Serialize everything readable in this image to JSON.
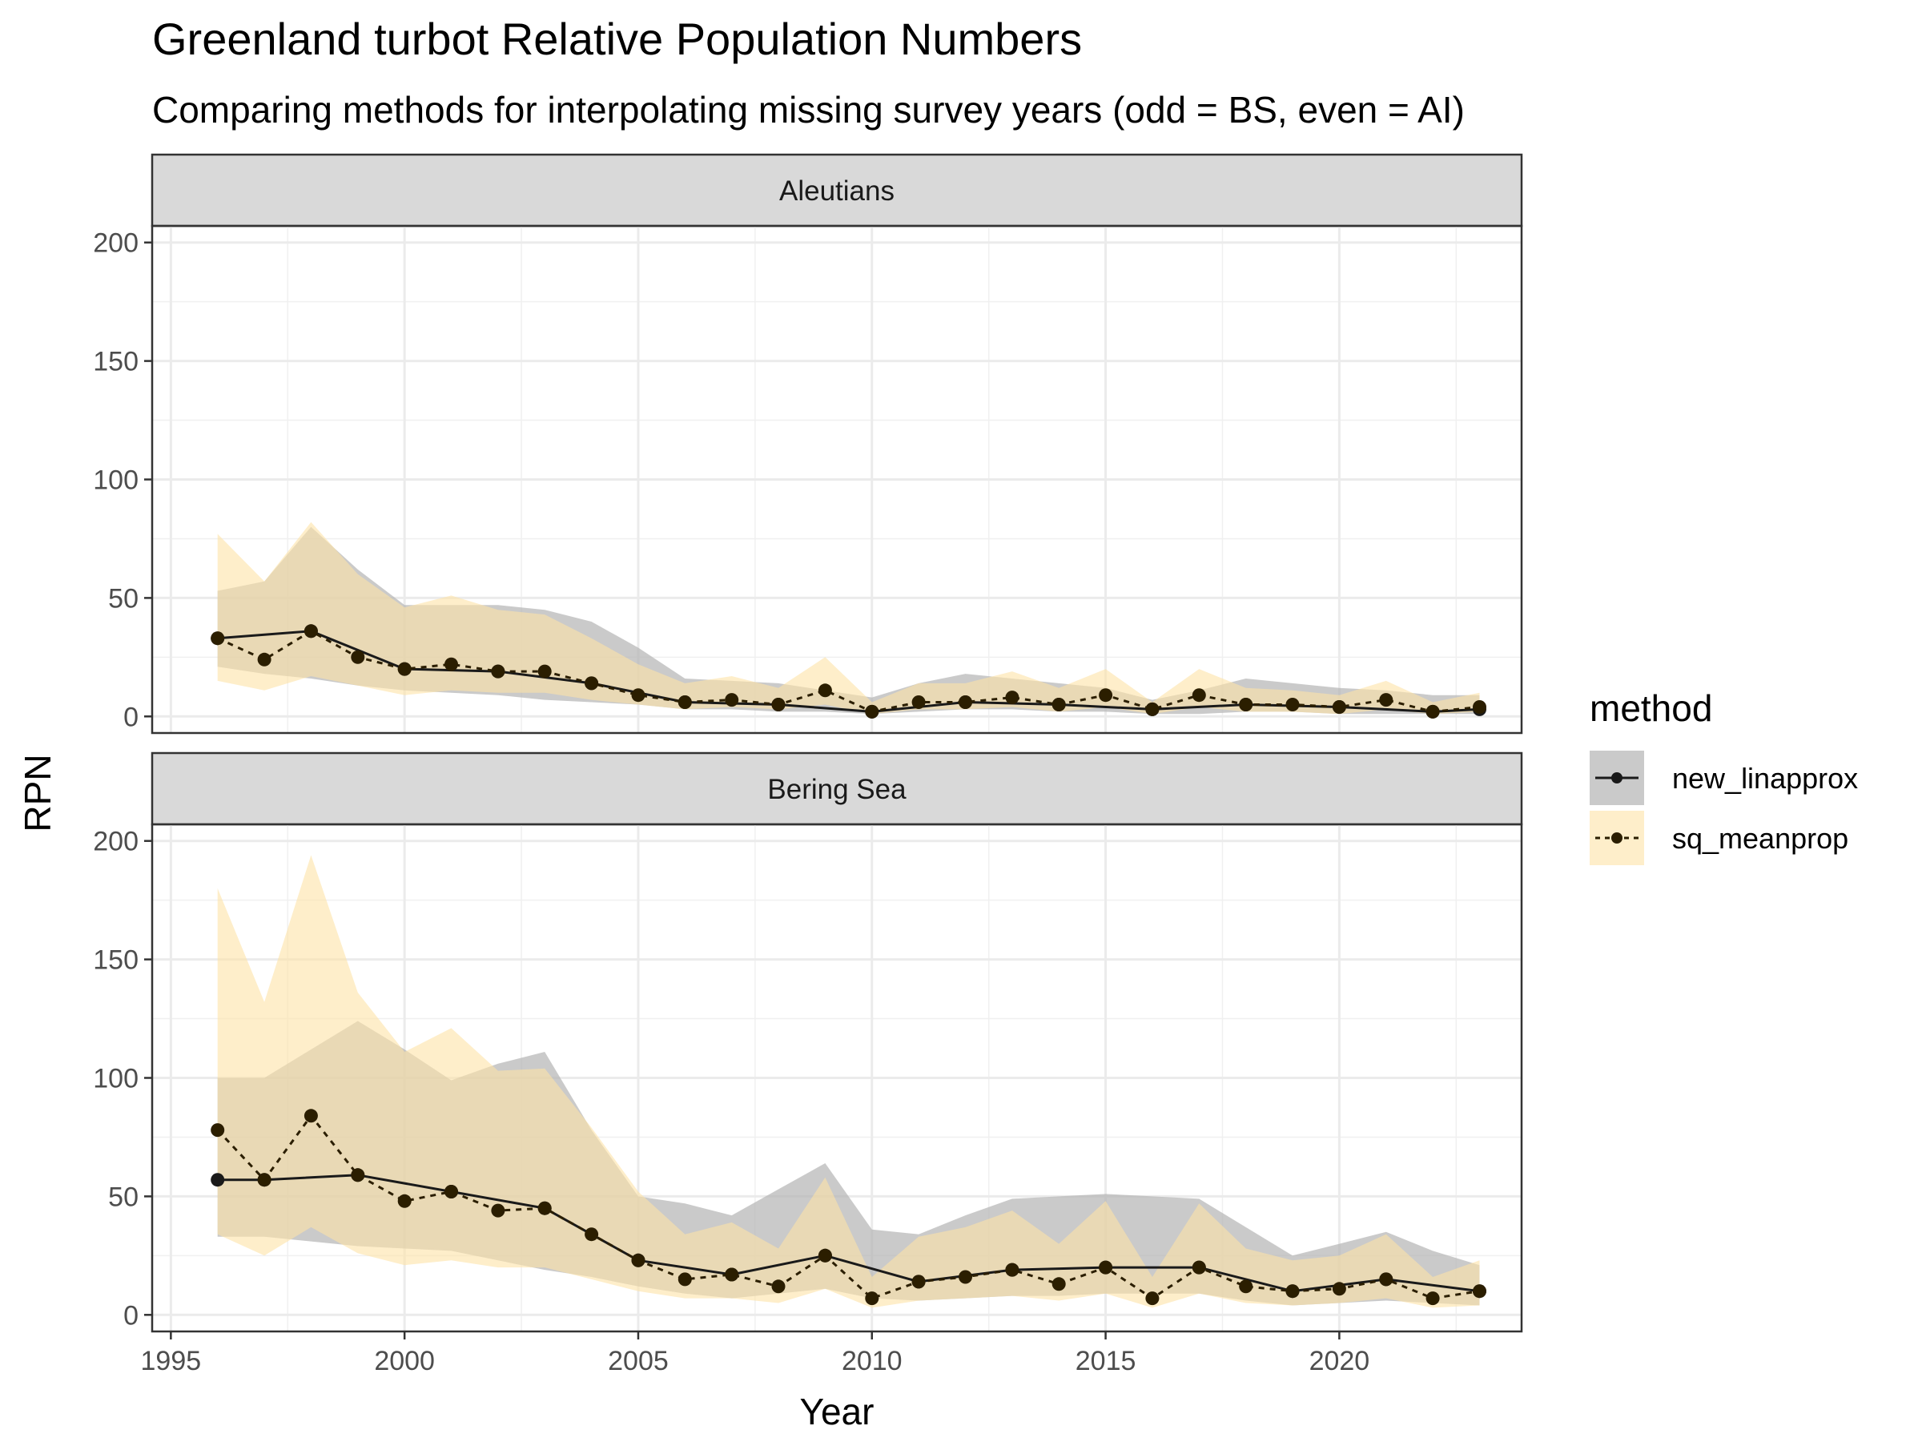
{
  "chart_data": {
    "type": "line",
    "title": "Greenland turbot Relative Population Numbers",
    "subtitle": "Comparing methods for interpolating missing survey years (odd = BS, even = AI)",
    "xlabel": "Year",
    "ylabel": "RPN",
    "xlim": [
      1994.6,
      2023.9
    ],
    "ylim": [
      -7,
      207
    ],
    "x_ticks": [
      1995,
      2000,
      2005,
      2010,
      2015,
      2020
    ],
    "y_ticks": [
      0,
      50,
      100,
      150,
      200
    ],
    "grid": true,
    "legend": {
      "title": "method",
      "position": "right",
      "entries": [
        "new_linapprox",
        "sq_meanprop"
      ]
    },
    "series_style": {
      "new_linapprox": {
        "line": "solid",
        "ribbon_color": "#b3b3b3",
        "ribbon_opacity": 0.7,
        "line_color": "#1a1a1a"
      },
      "sq_meanprop": {
        "line": "dashed",
        "ribbon_color": "#fde2a7",
        "ribbon_opacity": 0.6,
        "line_color": "#2b1e00"
      }
    },
    "panels": [
      {
        "strip": "Aleutians",
        "series": [
          {
            "name": "new_linapprox",
            "points": [
              [
                1996,
                33
              ],
              [
                1998,
                36
              ],
              [
                2000,
                20
              ],
              [
                2002,
                19
              ],
              [
                2004,
                14
              ],
              [
                2006,
                6
              ],
              [
                2008,
                5
              ],
              [
                2010,
                2
              ],
              [
                2012,
                6
              ],
              [
                2014,
                5
              ],
              [
                2016,
                3
              ],
              [
                2018,
                5
              ],
              [
                2020,
                4
              ],
              [
                2022,
                2
              ],
              [
                2023,
                3
              ]
            ],
            "ribbon": [
              [
                1996,
                21,
                53
              ],
              [
                1997,
                18,
                57
              ],
              [
                1998,
                16,
                80
              ],
              [
                1999,
                13,
                62
              ],
              [
                2000,
                11,
                47
              ],
              [
                2001,
                10,
                47
              ],
              [
                2002,
                9,
                47
              ],
              [
                2003,
                7,
                45
              ],
              [
                2004,
                6,
                40
              ],
              [
                2005,
                5,
                29
              ],
              [
                2006,
                3,
                16
              ],
              [
                2007,
                3,
                15
              ],
              [
                2008,
                2,
                14
              ],
              [
                2009,
                2,
                11
              ],
              [
                2010,
                1,
                8
              ],
              [
                2011,
                2,
                14
              ],
              [
                2012,
                3,
                18
              ],
              [
                2013,
                3,
                16
              ],
              [
                2014,
                2,
                14
              ],
              [
                2015,
                2,
                12
              ],
              [
                2016,
                1,
                7
              ],
              [
                2017,
                1,
                11
              ],
              [
                2018,
                2,
                16
              ],
              [
                2019,
                2,
                14
              ],
              [
                2020,
                1,
                12
              ],
              [
                2021,
                1,
                11
              ],
              [
                2022,
                1,
                9
              ],
              [
                2023,
                1,
                9
              ]
            ]
          },
          {
            "name": "sq_meanprop",
            "points": [
              [
                1996,
                33
              ],
              [
                1997,
                24
              ],
              [
                1998,
                36
              ],
              [
                1999,
                25
              ],
              [
                2000,
                20
              ],
              [
                2001,
                22
              ],
              [
                2002,
                19
              ],
              [
                2003,
                19
              ],
              [
                2004,
                14
              ],
              [
                2005,
                9
              ],
              [
                2006,
                6
              ],
              [
                2007,
                7
              ],
              [
                2008,
                5
              ],
              [
                2009,
                11
              ],
              [
                2010,
                2
              ],
              [
                2011,
                6
              ],
              [
                2012,
                6
              ],
              [
                2013,
                8
              ],
              [
                2014,
                5
              ],
              [
                2015,
                9
              ],
              [
                2016,
                3
              ],
              [
                2017,
                9
              ],
              [
                2018,
                5
              ],
              [
                2019,
                5
              ],
              [
                2020,
                4
              ],
              [
                2021,
                7
              ],
              [
                2022,
                2
              ],
              [
                2023,
                4
              ]
            ],
            "ribbon": [
              [
                1996,
                15,
                77
              ],
              [
                1997,
                11,
                57
              ],
              [
                1998,
                17,
                82
              ],
              [
                1999,
                13,
                60
              ],
              [
                2000,
                9,
                46
              ],
              [
                2001,
                11,
                51
              ],
              [
                2002,
                10,
                45
              ],
              [
                2003,
                10,
                43
              ],
              [
                2004,
                7,
                33
              ],
              [
                2005,
                5,
                22
              ],
              [
                2006,
                3,
                14
              ],
              [
                2007,
                4,
                17
              ],
              [
                2008,
                3,
                12
              ],
              [
                2009,
                5,
                25
              ],
              [
                2010,
                1,
                6
              ],
              [
                2011,
                3,
                14
              ],
              [
                2012,
                3,
                14
              ],
              [
                2013,
                4,
                19
              ],
              [
                2014,
                2,
                12
              ],
              [
                2015,
                4,
                20
              ],
              [
                2016,
                1,
                6
              ],
              [
                2017,
                4,
                20
              ],
              [
                2018,
                2,
                12
              ],
              [
                2019,
                2,
                11
              ],
              [
                2020,
                1,
                9
              ],
              [
                2021,
                3,
                15
              ],
              [
                2022,
                1,
                6
              ],
              [
                2023,
                2,
                10
              ]
            ]
          }
        ]
      },
      {
        "strip": "Bering Sea",
        "series": [
          {
            "name": "new_linapprox",
            "points": [
              [
                1996,
                57
              ],
              [
                1997,
                57
              ],
              [
                1999,
                59
              ],
              [
                2001,
                52
              ],
              [
                2003,
                45
              ],
              [
                2005,
                23
              ],
              [
                2007,
                17
              ],
              [
                2009,
                25
              ],
              [
                2011,
                14
              ],
              [
                2013,
                19
              ],
              [
                2015,
                20
              ],
              [
                2017,
                20
              ],
              [
                2019,
                10
              ],
              [
                2021,
                15
              ],
              [
                2023,
                10
              ]
            ],
            "ribbon": [
              [
                1996,
                33,
                100
              ],
              [
                1997,
                33,
                100
              ],
              [
                1998,
                31,
                112
              ],
              [
                1999,
                29,
                124
              ],
              [
                2000,
                28,
                112
              ],
              [
                2001,
                27,
                99
              ],
              [
                2002,
                23,
                106
              ],
              [
                2003,
                19,
                111
              ],
              [
                2004,
                16,
                78
              ],
              [
                2005,
                12,
                50
              ],
              [
                2006,
                9,
                47
              ],
              [
                2007,
                7,
                42
              ],
              [
                2008,
                9,
                53
              ],
              [
                2009,
                11,
                64
              ],
              [
                2010,
                7,
                36
              ],
              [
                2011,
                6,
                34
              ],
              [
                2012,
                7,
                42
              ],
              [
                2013,
                8,
                49
              ],
              [
                2014,
                8,
                50
              ],
              [
                2015,
                9,
                51
              ],
              [
                2016,
                9,
                50
              ],
              [
                2017,
                9,
                49
              ],
              [
                2018,
                6,
                37
              ],
              [
                2019,
                4,
                25
              ],
              [
                2020,
                5,
                30
              ],
              [
                2021,
                6,
                35
              ],
              [
                2022,
                5,
                27
              ],
              [
                2023,
                4,
                21
              ]
            ]
          },
          {
            "name": "sq_meanprop",
            "points": [
              [
                1996,
                78
              ],
              [
                1997,
                57
              ],
              [
                1998,
                84
              ],
              [
                1999,
                59
              ],
              [
                2000,
                48
              ],
              [
                2001,
                52
              ],
              [
                2002,
                44
              ],
              [
                2003,
                45
              ],
              [
                2004,
                34
              ],
              [
                2005,
                23
              ],
              [
                2006,
                15
              ],
              [
                2007,
                17
              ],
              [
                2008,
                12
              ],
              [
                2009,
                25
              ],
              [
                2010,
                7
              ],
              [
                2011,
                14
              ],
              [
                2012,
                16
              ],
              [
                2013,
                19
              ],
              [
                2014,
                13
              ],
              [
                2015,
                20
              ],
              [
                2016,
                7
              ],
              [
                2017,
                20
              ],
              [
                2018,
                12
              ],
              [
                2019,
                10
              ],
              [
                2020,
                11
              ],
              [
                2021,
                15
              ],
              [
                2022,
                7
              ],
              [
                2023,
                10
              ]
            ],
            "ribbon": [
              [
                1996,
                34,
                180
              ],
              [
                1997,
                25,
                132
              ],
              [
                1998,
                37,
                194
              ],
              [
                1999,
                26,
                136
              ],
              [
                2000,
                21,
                111
              ],
              [
                2001,
                23,
                121
              ],
              [
                2002,
                20,
                103
              ],
              [
                2003,
                20,
                104
              ],
              [
                2004,
                15,
                79
              ],
              [
                2005,
                10,
                52
              ],
              [
                2006,
                7,
                34
              ],
              [
                2007,
                7,
                39
              ],
              [
                2008,
                5,
                28
              ],
              [
                2009,
                11,
                58
              ],
              [
                2010,
                3,
                16
              ],
              [
                2011,
                6,
                33
              ],
              [
                2012,
                7,
                37
              ],
              [
                2013,
                8,
                44
              ],
              [
                2014,
                6,
                30
              ],
              [
                2015,
                9,
                48
              ],
              [
                2016,
                3,
                16
              ],
              [
                2017,
                9,
                47
              ],
              [
                2018,
                5,
                28
              ],
              [
                2019,
                4,
                23
              ],
              [
                2020,
                5,
                25
              ],
              [
                2021,
                7,
                34
              ],
              [
                2022,
                3,
                16
              ],
              [
                2023,
                4,
                23
              ]
            ]
          }
        ]
      }
    ]
  }
}
